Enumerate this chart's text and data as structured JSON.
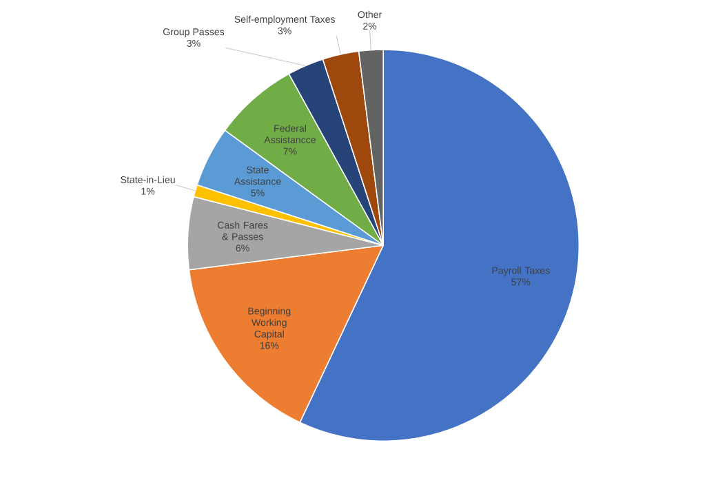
{
  "chart_data": {
    "type": "pie",
    "categories": [
      "Payroll Taxes",
      "Beginning Working Capital",
      "Cash Fares & Passes",
      "State-in-Lieu",
      "State Assistance",
      "Federal Assistancce",
      "Group Passes",
      "Self-employment Taxes",
      "Other"
    ],
    "values": [
      57,
      16,
      6,
      1,
      5,
      7,
      3,
      3,
      2
    ],
    "value_labels": [
      "57%",
      "16%",
      "6%",
      "1%",
      "5%",
      "7%",
      "3%",
      "3%",
      "2%"
    ],
    "colors": [
      "#4472c4",
      "#ed7d31",
      "#a5a5a5",
      "#ffc000",
      "#5b9bd5",
      "#70ad47",
      "#264478",
      "#9e480e",
      "#636363"
    ]
  }
}
